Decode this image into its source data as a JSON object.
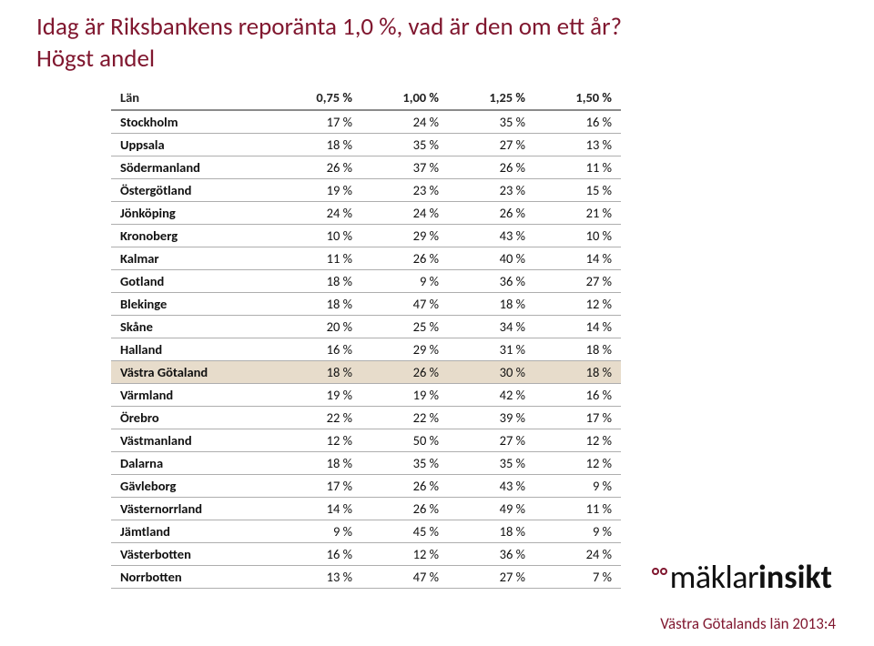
{
  "colors": {
    "accent": "#80172f",
    "header_rule": "#8b8b8b",
    "row_rule": "#aeaeae",
    "highlight_bg": "#e7dccb",
    "text": "#111111",
    "background": "#ffffff"
  },
  "title": "Idag är Riksbankens reporänta 1,0 %, vad är den om ett år?",
  "subtitle": "Högst andel",
  "table": {
    "col_label": "Län",
    "cols": [
      "0,75 %",
      "1,00 %",
      "1,25 %",
      "1,50 %"
    ],
    "rows": [
      {
        "name": "Stockholm",
        "v": [
          "17 %",
          "24 %",
          "35 %",
          "16 %"
        ],
        "hl": false
      },
      {
        "name": "Uppsala",
        "v": [
          "18 %",
          "35 %",
          "27 %",
          "13 %"
        ],
        "hl": false
      },
      {
        "name": "Södermanland",
        "v": [
          "26 %",
          "37 %",
          "26 %",
          "11 %"
        ],
        "hl": false
      },
      {
        "name": "Östergötland",
        "v": [
          "19 %",
          "23 %",
          "23 %",
          "15 %"
        ],
        "hl": false
      },
      {
        "name": "Jönköping",
        "v": [
          "24 %",
          "24 %",
          "26 %",
          "21 %"
        ],
        "hl": false
      },
      {
        "name": "Kronoberg",
        "v": [
          "10 %",
          "29 %",
          "43 %",
          "10 %"
        ],
        "hl": false
      },
      {
        "name": "Kalmar",
        "v": [
          "11 %",
          "26 %",
          "40 %",
          "14 %"
        ],
        "hl": false
      },
      {
        "name": "Gotland",
        "v": [
          "18 %",
          "9 %",
          "36 %",
          "27 %"
        ],
        "hl": false
      },
      {
        "name": "Blekinge",
        "v": [
          "18 %",
          "47 %",
          "18 %",
          "12 %"
        ],
        "hl": false
      },
      {
        "name": "Skåne",
        "v": [
          "20 %",
          "25 %",
          "34 %",
          "14 %"
        ],
        "hl": false
      },
      {
        "name": "Halland",
        "v": [
          "16 %",
          "29 %",
          "31 %",
          "18 %"
        ],
        "hl": false
      },
      {
        "name": "Västra Götaland",
        "v": [
          "18 %",
          "26 %",
          "30 %",
          "18 %"
        ],
        "hl": true
      },
      {
        "name": "Värmland",
        "v": [
          "19 %",
          "19 %",
          "42 %",
          "16 %"
        ],
        "hl": false
      },
      {
        "name": "Örebro",
        "v": [
          "22 %",
          "22 %",
          "39 %",
          "17 %"
        ],
        "hl": false
      },
      {
        "name": "Västmanland",
        "v": [
          "12 %",
          "50 %",
          "27 %",
          "12 %"
        ],
        "hl": false
      },
      {
        "name": "Dalarna",
        "v": [
          "18 %",
          "35 %",
          "35 %",
          "12 %"
        ],
        "hl": false
      },
      {
        "name": "Gävleborg",
        "v": [
          "17 %",
          "26 %",
          "43 %",
          "9 %"
        ],
        "hl": false
      },
      {
        "name": "Västernorrland",
        "v": [
          "14 %",
          "26 %",
          "49 %",
          "11 %"
        ],
        "hl": false
      },
      {
        "name": "Jämtland",
        "v": [
          "9 %",
          "45 %",
          "18 %",
          "9 %"
        ],
        "hl": false
      },
      {
        "name": "Västerbotten",
        "v": [
          "16 %",
          "12 %",
          "36 %",
          "24 %"
        ],
        "hl": false
      },
      {
        "name": "Norrbotten",
        "v": [
          "13 %",
          "47 %",
          "27 %",
          "7 %"
        ],
        "hl": false
      }
    ]
  },
  "logo": {
    "part1": "mäklar",
    "part2": "insikt"
  },
  "footer": "Västra Götalands län 2013:4"
}
